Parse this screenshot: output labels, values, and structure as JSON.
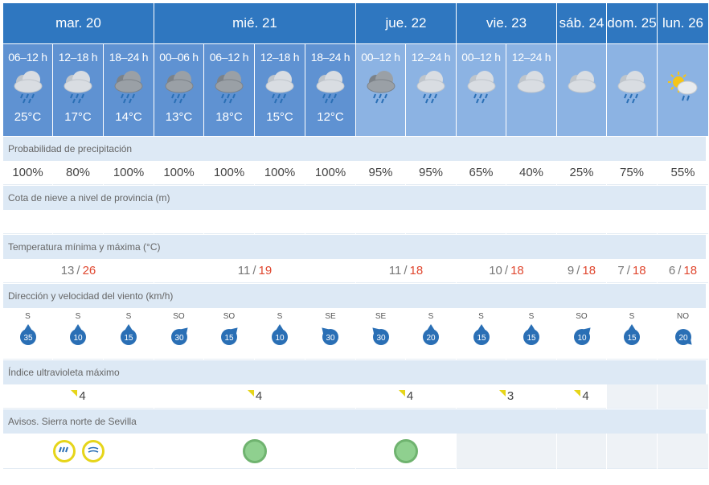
{
  "days": [
    {
      "label": "mar. 20",
      "span": 3
    },
    {
      "label": "mié. 21",
      "span": 4
    },
    {
      "label": "jue. 22",
      "span": 2
    },
    {
      "label": "vie. 23",
      "span": 2
    },
    {
      "label": "sáb. 24",
      "span": 1
    },
    {
      "label": "dom. 25",
      "span": 1
    },
    {
      "label": "lun. 26",
      "span": 1
    }
  ],
  "slots": [
    {
      "period": "06–12 h",
      "icon": "rain-cloud-icon",
      "temp": "25°C"
    },
    {
      "period": "12–18 h",
      "icon": "rain-cloud-icon",
      "temp": "17°C"
    },
    {
      "period": "18–24 h",
      "icon": "dark-rain-cloud-icon",
      "temp": "14°C"
    },
    {
      "period": "00–06 h",
      "icon": "dark-rain-cloud-icon",
      "temp": "13°C"
    },
    {
      "period": "06–12 h",
      "icon": "dark-rain-cloud-icon",
      "temp": "18°C"
    },
    {
      "period": "12–18 h",
      "icon": "rain-cloud-icon",
      "temp": "15°C"
    },
    {
      "period": "18–24 h",
      "icon": "rain-cloud-icon",
      "temp": "12°C"
    },
    {
      "period": "00–12 h",
      "icon": "dark-rain-cloud-icon",
      "temp": ""
    },
    {
      "period": "12–24 h",
      "icon": "rain-cloud-icon",
      "temp": ""
    },
    {
      "period": "00–12 h",
      "icon": "rain-cloud-icon",
      "temp": ""
    },
    {
      "period": "12–24 h",
      "icon": "cloud-icon",
      "temp": ""
    },
    {
      "period": "",
      "icon": "cloud-icon",
      "temp": ""
    },
    {
      "period": "",
      "icon": "rain-cloud-icon",
      "temp": ""
    },
    {
      "period": "",
      "icon": "sun-rain-cloud-icon",
      "temp": ""
    }
  ],
  "sections": {
    "precip": "Probabilidad de precipitación",
    "snow": "Cota de nieve a nivel de provincia (m)",
    "temp": "Temperatura mínima y máxima (°C)",
    "wind": "Dirección y velocidad del viento (km/h)",
    "uv": "Índice ultravioleta máximo",
    "warn": "Avisos. Sierra norte de Sevilla"
  },
  "precip": [
    "100%",
    "80%",
    "100%",
    "100%",
    "100%",
    "100%",
    "100%",
    "95%",
    "95%",
    "65%",
    "40%",
    "25%",
    "75%",
    "55%"
  ],
  "minmax": [
    {
      "min": "13",
      "max": "26",
      "span": 3
    },
    {
      "min": "11",
      "max": "19",
      "span": 4
    },
    {
      "min": "11",
      "max": "18",
      "span": 2
    },
    {
      "min": "10",
      "max": "18",
      "span": 2
    },
    {
      "min": "9",
      "max": "18",
      "span": 1
    },
    {
      "min": "7",
      "max": "18",
      "span": 1
    },
    {
      "min": "6",
      "max": "18",
      "span": 1
    }
  ],
  "separator": "/",
  "wind": [
    {
      "dir": "S",
      "speed": "35"
    },
    {
      "dir": "S",
      "speed": "10"
    },
    {
      "dir": "S",
      "speed": "15"
    },
    {
      "dir": "SO",
      "speed": "30"
    },
    {
      "dir": "SO",
      "speed": "15"
    },
    {
      "dir": "S",
      "speed": "10"
    },
    {
      "dir": "SE",
      "speed": "30"
    },
    {
      "dir": "SE",
      "speed": "30"
    },
    {
      "dir": "S",
      "speed": "20"
    },
    {
      "dir": "S",
      "speed": "15"
    },
    {
      "dir": "S",
      "speed": "15"
    },
    {
      "dir": "SO",
      "speed": "10"
    },
    {
      "dir": "S",
      "speed": "15"
    },
    {
      "dir": "NO",
      "speed": "20"
    }
  ],
  "uv": [
    {
      "value": "4",
      "span": 3
    },
    {
      "value": "4",
      "span": 4
    },
    {
      "value": "4",
      "span": 2
    },
    {
      "value": "3",
      "span": 2
    },
    {
      "value": "4",
      "span": 1
    },
    {
      "value": "",
      "span": 1
    },
    {
      "value": "",
      "span": 1
    }
  ],
  "warnings": [
    {
      "type": "yellow",
      "icons": [
        "rain-warning-icon",
        "wind-warning-icon"
      ],
      "span": 3
    },
    {
      "type": "green",
      "icons": [
        "no-warning-icon"
      ],
      "span": 4
    },
    {
      "type": "green",
      "icons": [
        "no-warning-icon"
      ],
      "span": 2
    },
    {
      "type": "none",
      "icons": [],
      "span": 2
    },
    {
      "type": "none",
      "icons": [],
      "span": 1
    },
    {
      "type": "none",
      "icons": [],
      "span": 1
    },
    {
      "type": "none",
      "icons": [],
      "span": 1
    }
  ],
  "colors": {
    "header": "#2f77c0",
    "slot": "#5f92d2",
    "slot_light": "#8cb3e3",
    "section": "#dde9f5",
    "max_temp": "#e0472f",
    "wind_badge": "#2a6fb5",
    "uv_flag": "#e6d51a",
    "warn_yellow": "#e6d51a",
    "warn_green": "#8fd08f"
  }
}
